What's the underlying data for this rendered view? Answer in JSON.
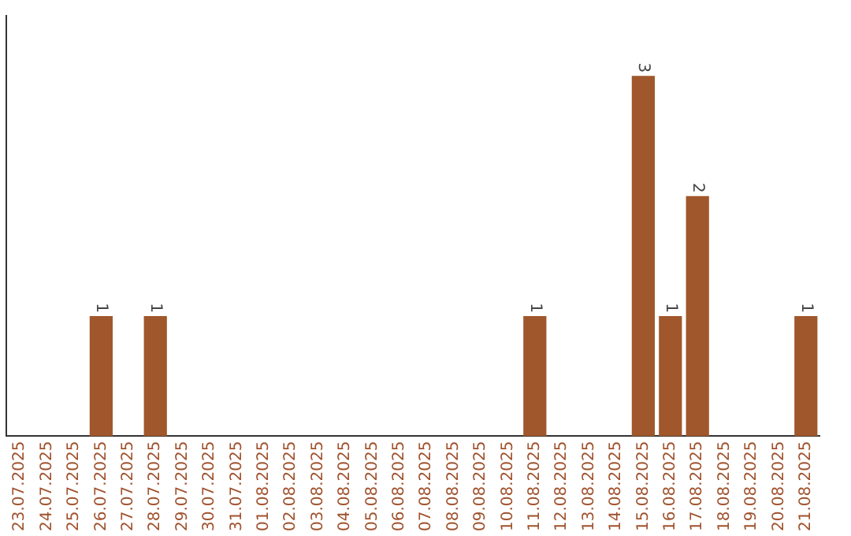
{
  "chart_data": {
    "type": "bar",
    "categories": [
      "23.07.2025",
      "24.07.2025",
      "25.07.2025",
      "26.07.2025",
      "27.07.2025",
      "28.07.2025",
      "29.07.2025",
      "30.07.2025",
      "31.07.2025",
      "01.08.2025",
      "02.08.2025",
      "03.08.2025",
      "04.08.2025",
      "05.08.2025",
      "06.08.2025",
      "07.08.2025",
      "08.08.2025",
      "09.08.2025",
      "10.08.2025",
      "11.08.2025",
      "12.08.2025",
      "13.08.2025",
      "14.08.2025",
      "15.08.2025",
      "16.08.2025",
      "17.08.2025",
      "18.08.2025",
      "19.08.2025",
      "20.08.2025",
      "21.08.2025"
    ],
    "values": [
      0,
      0,
      0,
      1,
      0,
      1,
      0,
      0,
      0,
      0,
      0,
      0,
      0,
      0,
      0,
      0,
      0,
      0,
      0,
      1,
      0,
      0,
      0,
      3,
      1,
      2,
      0,
      0,
      0,
      1
    ],
    "value_labels": [
      null,
      null,
      null,
      "1",
      null,
      "1",
      null,
      null,
      null,
      null,
      null,
      null,
      null,
      null,
      null,
      null,
      null,
      null,
      null,
      "1",
      null,
      null,
      null,
      "3",
      "1",
      "2",
      null,
      null,
      null,
      "1"
    ],
    "color": "#a0572b",
    "grid": false,
    "legend": false
  }
}
